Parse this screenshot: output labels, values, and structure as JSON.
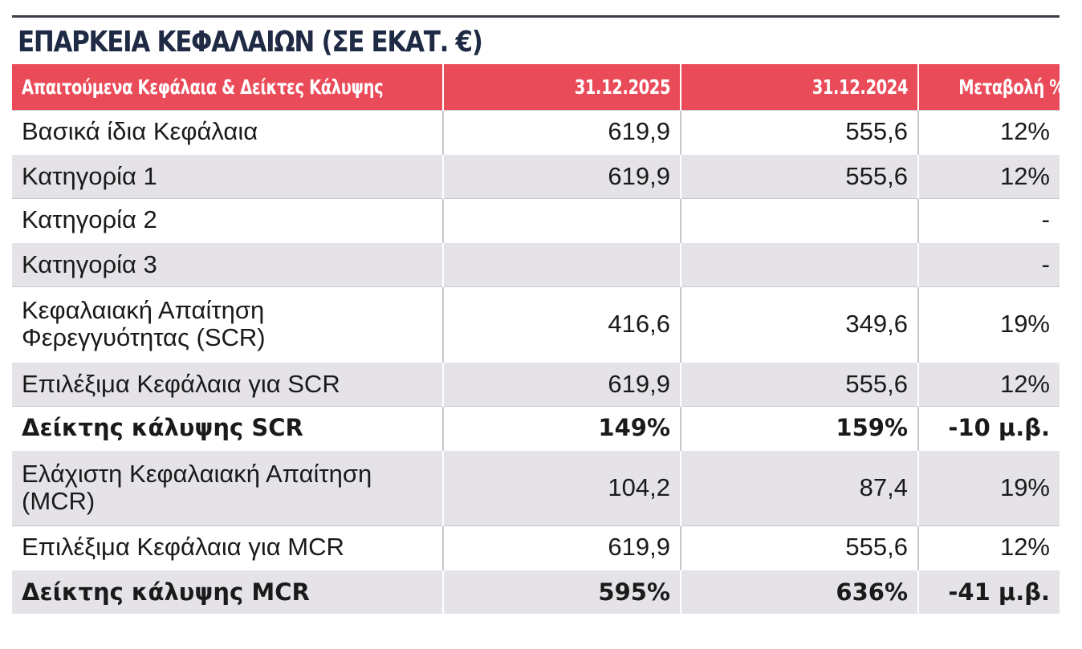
{
  "title": "ΕΠΑΡΚΕΙΑ ΚΕΦΑΛΑΙΩΝ (ΣΕ ΕΚΑΤ. €)",
  "table": {
    "headers": [
      "Απαιτούμενα Κεφάλαια & Δείκτες Κάλυψης",
      "31.12.2025",
      "31.12.2024",
      "Μεταβολή %"
    ],
    "rows": [
      {
        "label": "Βασικά ίδια Κεφάλαια",
        "v2025": "619,9",
        "v2024": "555,6",
        "change": "12%"
      },
      {
        "label": "Κατηγορία 1",
        "v2025": "619,9",
        "v2024": "555,6",
        "change": "12%"
      },
      {
        "label": "Κατηγορία 2",
        "v2025": "",
        "v2024": "",
        "change": "-"
      },
      {
        "label": "Κατηγορία 3",
        "v2025": "",
        "v2024": "",
        "change": "-"
      },
      {
        "label": "Κεφαλαιακή Απαίτηση Φερεγγυότητας (SCR)",
        "v2025": "416,6",
        "v2024": "349,6",
        "change": "19%"
      },
      {
        "label": "Επιλέξιμα Κεφάλαια για SCR",
        "v2025": "619,9",
        "v2024": "555,6",
        "change": "12%"
      },
      {
        "label": "Δείκτης κάλυψης SCR",
        "v2025": "149%",
        "v2024": "159%",
        "change": "-10 μ.β."
      },
      {
        "label": "Ελάχιστη Κεφαλαιακή Απαίτηση (MCR)",
        "v2025": "104,2",
        "v2024": "87,4",
        "change": "19%"
      },
      {
        "label": "Επιλέξιμα Κεφάλαια για MCR",
        "v2025": "619,9",
        "v2024": "555,6",
        "change": "12%"
      },
      {
        "label": "Δείκτης κάλυψης MCR",
        "v2025": "595%",
        "v2024": "636%",
        "change": "-41 μ.β."
      }
    ]
  }
}
